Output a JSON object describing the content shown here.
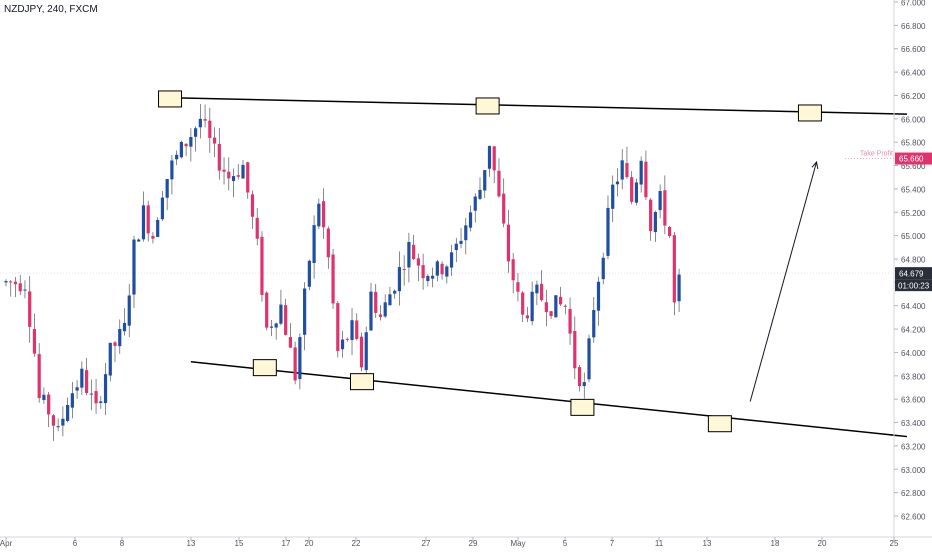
{
  "header": {
    "symbol": "NZDJPY, 240, FXCM"
  },
  "colors": {
    "up": "#1e4fa3",
    "down": "#e0336b",
    "trendline": "#000000",
    "box_fill": "#fff7d6",
    "box_stroke": "#000000",
    "price_badge": "#e0336b",
    "current_badge": "#2a2e39",
    "grid": "#f0f3fa",
    "axis_text": "#50535e"
  },
  "chart_data": {
    "type": "candlestick",
    "title": "NZDJPY, 240, FXCM",
    "x_ticks": [
      "Apr",
      "6",
      "8",
      "13",
      "15",
      "17",
      "20",
      "22",
      "27",
      "29",
      "May",
      "5",
      "7",
      "11",
      "13",
      "18",
      "20",
      "25"
    ],
    "y_ticks": [
      "67.000",
      "66.800",
      "66.600",
      "66.400",
      "66.200",
      "66.000",
      "65.800",
      "65.600",
      "65.400",
      "65.200",
      "65.000",
      "64.800",
      "64.600",
      "64.400",
      "64.200",
      "64.000",
      "63.800",
      "63.600",
      "63.400",
      "63.200",
      "63.000",
      "62.800",
      "62.600"
    ],
    "ylim": [
      62.4,
      67.0
    ],
    "current_price": "64.679",
    "countdown": "01:00:23",
    "take_profit": {
      "label": "Take Profit",
      "price": "65.660"
    },
    "candle_count": 150,
    "pattern_points": [
      [
        5,
        64.3
      ],
      [
        6,
        64.0
      ],
      [
        7,
        63.6
      ],
      [
        9,
        63.5
      ],
      [
        11,
        63.3
      ],
      [
        13,
        63.6
      ],
      [
        16,
        63.8
      ],
      [
        19,
        63.5
      ],
      [
        22,
        64.0
      ],
      [
        25,
        64.2
      ],
      [
        27,
        64.9
      ],
      [
        29,
        65.2
      ],
      [
        31,
        65.0
      ],
      [
        33,
        65.4
      ],
      [
        35,
        65.6
      ],
      [
        38,
        65.8
      ],
      [
        41,
        66.0
      ],
      [
        44,
        65.7
      ],
      [
        47,
        65.5
      ],
      [
        50,
        65.6
      ],
      [
        53,
        64.9
      ],
      [
        55,
        64.2
      ],
      [
        58,
        64.4
      ],
      [
        61,
        63.8
      ],
      [
        64,
        64.8
      ],
      [
        66,
        65.3
      ],
      [
        68,
        64.8
      ],
      [
        70,
        64.0
      ],
      [
        73,
        64.2
      ],
      [
        75,
        63.9
      ],
      [
        77,
        64.5
      ],
      [
        79,
        64.3
      ],
      [
        82,
        64.6
      ],
      [
        85,
        64.9
      ],
      [
        88,
        64.7
      ],
      [
        91,
        64.7
      ],
      [
        94,
        64.8
      ],
      [
        97,
        65.1
      ],
      [
        100,
        65.4
      ],
      [
        102,
        65.8
      ],
      [
        104,
        65.3
      ],
      [
        106,
        64.8
      ],
      [
        109,
        64.3
      ],
      [
        112,
        64.5
      ],
      [
        115,
        64.4
      ],
      [
        118,
        64.4
      ],
      [
        120,
        63.9
      ],
      [
        122,
        63.7
      ],
      [
        124,
        64.4
      ],
      [
        126,
        64.9
      ],
      [
        128,
        65.4
      ],
      [
        130,
        65.6
      ],
      [
        132,
        65.3
      ],
      [
        134,
        65.7
      ],
      [
        136,
        65.1
      ],
      [
        138,
        65.3
      ],
      [
        140,
        65.0
      ],
      [
        141,
        64.4
      ],
      [
        142,
        64.6
      ]
    ],
    "trendlines": [
      {
        "name": "resistance",
        "from": [
          35,
          66.18
        ],
        "to": [
          150,
          66.04
        ]
      },
      {
        "name": "support",
        "from": [
          39,
          63.92
        ],
        "to": [
          150,
          63.28
        ]
      }
    ],
    "markers": [
      [
        34.5,
        66.17
      ],
      [
        101.5,
        66.11
      ],
      [
        54.5,
        63.87
      ],
      [
        75,
        63.75
      ],
      [
        121.5,
        63.53
      ],
      [
        169.5,
        66.05
      ],
      [
        150.5,
        63.39
      ]
    ],
    "projection_arrow": {
      "from": [
        157,
        63.58
      ],
      "to": [
        171,
        65.63
      ]
    },
    "x_domain": [
      0,
      183
    ]
  }
}
